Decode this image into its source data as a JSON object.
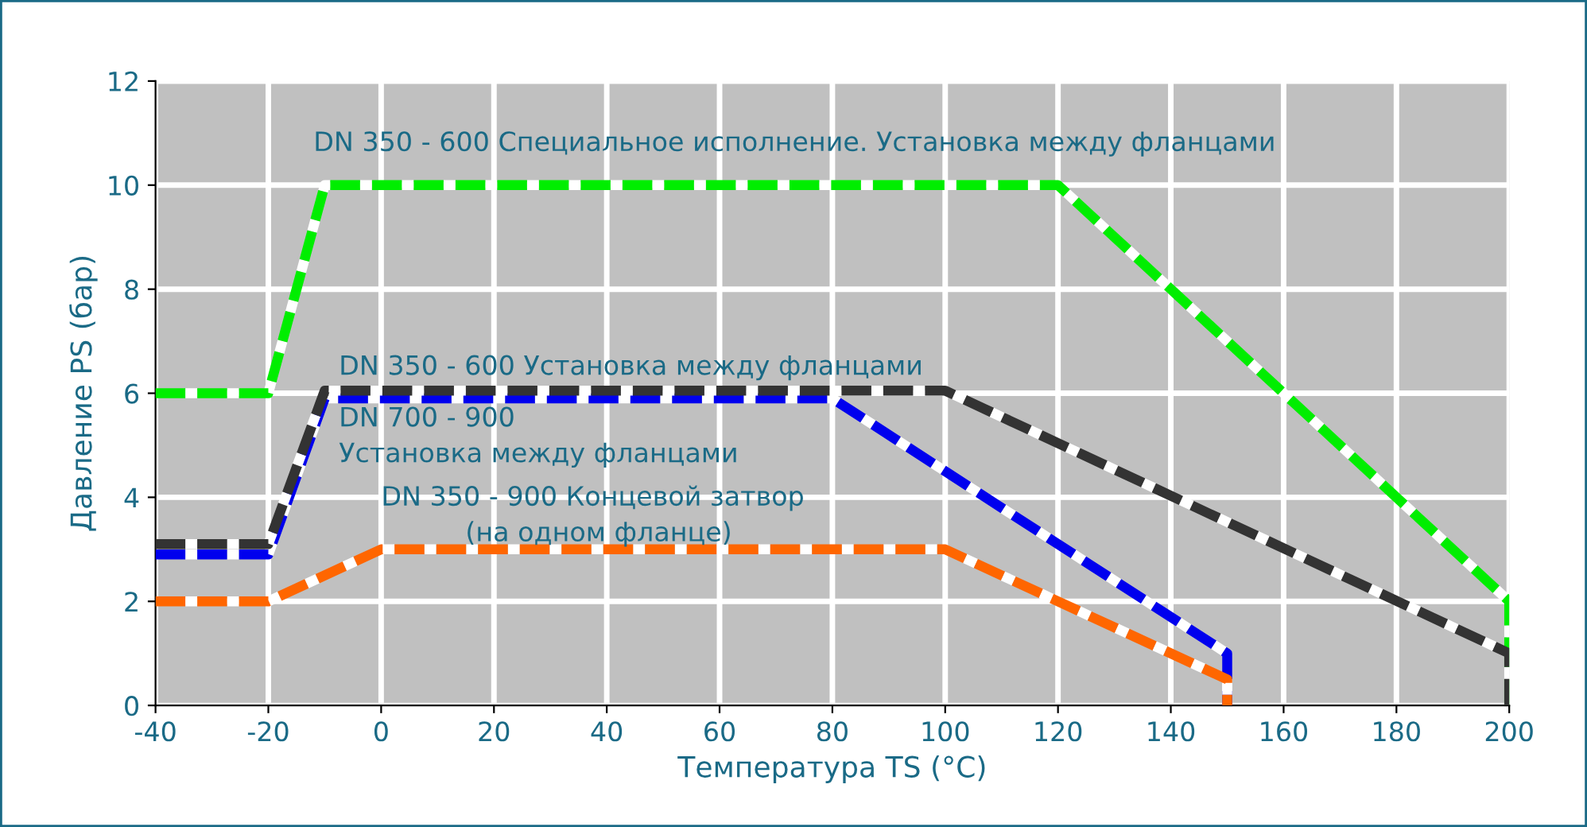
{
  "chart_data": {
    "type": "line",
    "xlabel": "Температура TS (°C)",
    "ylabel": "Давление PS (бар)",
    "xlim": [
      -40,
      200
    ],
    "ylim": [
      0,
      12
    ],
    "xticks": [
      -40,
      -20,
      0,
      20,
      40,
      60,
      80,
      100,
      120,
      140,
      160,
      180,
      200
    ],
    "yticks": [
      0,
      2,
      4,
      6,
      8,
      10,
      12
    ],
    "grid": true,
    "line_style": "dashed",
    "marker": "none",
    "series": [
      {
        "name": "DN 350 - 600 Специальное исполнение. Установка между фланцами",
        "color": "#00ee00",
        "x": [
          -40,
          -20,
          -10,
          120,
          200,
          200
        ],
        "values": [
          6,
          6,
          10,
          10,
          2,
          0
        ]
      },
      {
        "name": "DN 350 - 600 Установка между фланцами",
        "color": "#333333",
        "x": [
          -40,
          -20,
          -10,
          100,
          200,
          200
        ],
        "values": [
          3.1,
          3.1,
          6.05,
          6.05,
          1,
          0
        ]
      },
      {
        "name": "DN 700 - 900\nУстановка между фланцами",
        "color": "#0000ee",
        "x": [
          -40,
          -20,
          -10,
          80,
          150,
          150
        ],
        "values": [
          2.9,
          2.9,
          5.9,
          5.9,
          1,
          0
        ]
      },
      {
        "name": "DN 350 - 900 Концевой затвор\n          (на одном фланце)",
        "color": "#ff6600",
        "x": [
          -40,
          -20,
          0,
          100,
          150,
          150
        ],
        "values": [
          2,
          2,
          3,
          3,
          0.5,
          0
        ]
      }
    ]
  }
}
